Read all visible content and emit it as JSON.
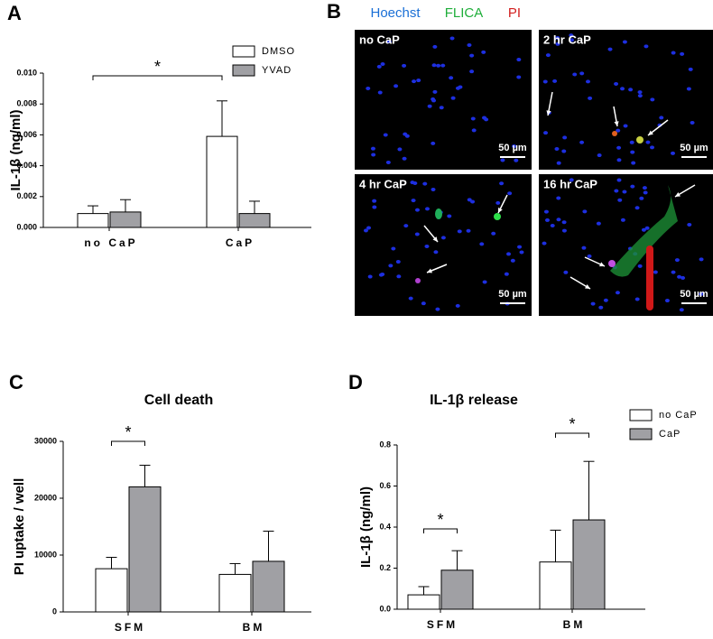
{
  "figure": {
    "panel_letters": [
      "A",
      "B",
      "C",
      "D"
    ],
    "stain_legend": [
      {
        "text": "Hoechst",
        "color": "#1a6fd6"
      },
      {
        "text": "FLICA",
        "color": "#1fae3a"
      },
      {
        "text": "PI",
        "color": "#d21f1f"
      }
    ],
    "images": [
      {
        "label": "no CaP",
        "scale": "50 µm"
      },
      {
        "label": "2 hr CaP",
        "scale": "50 µm"
      },
      {
        "label": "4 hr CaP",
        "scale": "50 µm"
      },
      {
        "label": "16 hr CaP",
        "scale": "50 µm"
      }
    ]
  },
  "chart_data": [
    {
      "type": "bar",
      "y_label": "IL-1β (ng/ml)",
      "categories": [
        "no CaP",
        "CaP"
      ],
      "series": [
        {
          "name": "DMSO",
          "color": "#ffffff",
          "values": [
            0.0009,
            0.0059
          ],
          "errors": [
            0.0005,
            0.0023
          ]
        },
        {
          "name": "YVAD",
          "color": "#a0a0a4",
          "values": [
            0.001,
            0.0009
          ],
          "errors": [
            0.0008,
            0.0008
          ]
        }
      ],
      "ylim": [
        0,
        0.01
      ],
      "yticks": [
        {
          "value": 0,
          "label": "0.000"
        },
        {
          "value": 0.002,
          "label": "0.002"
        },
        {
          "value": 0.004,
          "label": "0.004"
        },
        {
          "value": 0.006,
          "label": "0.006"
        },
        {
          "value": 0.008,
          "label": "0.008"
        },
        {
          "value": 0.01,
          "label": "0.010"
        }
      ],
      "legend": "top-right",
      "annotations": [
        "*"
      ]
    },
    {
      "type": "bar",
      "title": "Cell death",
      "y_label": "PI uptake / well",
      "categories": [
        "SFM",
        "BM"
      ],
      "series": [
        {
          "color": "#ffffff",
          "values": [
            7600,
            6600
          ],
          "errors": [
            2000,
            1900
          ]
        },
        {
          "color": "#a0a0a4",
          "values": [
            22000,
            8900
          ],
          "errors": [
            3800,
            5300
          ]
        }
      ],
      "ylim": [
        0,
        30000
      ],
      "yticks": [
        0,
        10000,
        20000,
        30000
      ],
      "annotations": [
        "*"
      ]
    },
    {
      "type": "bar",
      "title": "IL-1β release",
      "y_label": "IL-1β (ng/ml)",
      "categories": [
        "SFM",
        "BM"
      ],
      "series": [
        {
          "name": "no CaP",
          "color": "#ffffff",
          "values": [
            0.07,
            0.23
          ],
          "errors": [
            0.04,
            0.155
          ]
        },
        {
          "name": "CaP",
          "color": "#a0a0a4",
          "values": [
            0.19,
            0.435
          ],
          "errors": [
            0.095,
            0.285
          ]
        }
      ],
      "ylim": [
        0,
        0.8
      ],
      "yticks": [
        {
          "value": 0,
          "label": "0.0"
        },
        0.2,
        0.4,
        0.6,
        0.8
      ],
      "legend": "top-right",
      "annotations": [
        "*",
        "*"
      ]
    }
  ]
}
